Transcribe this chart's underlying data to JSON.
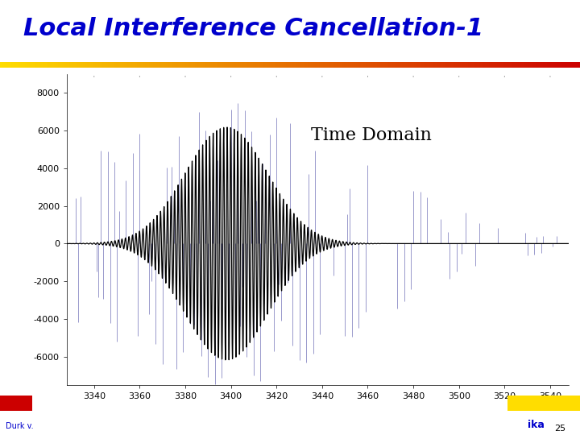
{
  "title": "Local Interference Cancellation-1",
  "title_color": "#0000CC",
  "subtitle": "Time Domain",
  "subtitle_color": "#000000",
  "subtitle_fontsize": 16,
  "background_color": "#ffffff",
  "xlim": [
    3328,
    3548
  ],
  "ylim": [
    -7500,
    9000
  ],
  "yticks": [
    -6000,
    -4000,
    -2000,
    0,
    2000,
    4000,
    6000,
    8000
  ],
  "xticks": [
    3340,
    3360,
    3380,
    3400,
    3420,
    3440,
    3460,
    3480,
    3500,
    3520,
    3540
  ],
  "bar_yellow": "#FFDD00",
  "bar_red": "#CC0000",
  "footer_left": "Durk v.",
  "footer_right": "ika",
  "page_number": "25",
  "signal_color_black": "#000000",
  "signal_color_blue": "#7777BB",
  "x_center": 3398,
  "black_amplitude": 6200,
  "black_sigma": 18,
  "black_freq_per_unit": 0.65,
  "blue_amplitude": 7500,
  "blue_sigma": 60,
  "blue_freq_per_unit": 0.65
}
